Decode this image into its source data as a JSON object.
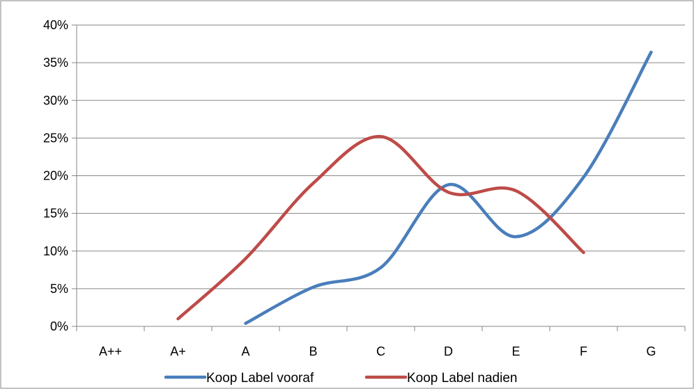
{
  "chart_data": {
    "type": "line",
    "smooth": true,
    "categories": [
      "A++",
      "A+",
      "A",
      "B",
      "C",
      "D",
      "E",
      "F",
      "G"
    ],
    "series": [
      {
        "name": "Koop Label vooraf",
        "color": "#4a7ebb",
        "values": [
          null,
          null,
          0.004,
          0.052,
          0.078,
          0.188,
          0.119,
          0.198,
          0.364
        ]
      },
      {
        "name": "Koop Label nadien",
        "color": "#be4b48",
        "values": [
          null,
          0.01,
          0.09,
          0.19,
          0.252,
          0.178,
          0.18,
          0.098,
          null
        ]
      }
    ],
    "ylim": [
      0,
      0.4
    ],
    "yticks": [
      0,
      0.05,
      0.1,
      0.15,
      0.2,
      0.25,
      0.3,
      0.35,
      0.4
    ],
    "ytick_labels": [
      "0%",
      "5%",
      "10%",
      "15%",
      "20%",
      "25%",
      "30%",
      "35%",
      "40%"
    ],
    "grid": "horizontal",
    "legend_position": "bottom",
    "title": "",
    "xlabel": "",
    "ylabel": ""
  }
}
